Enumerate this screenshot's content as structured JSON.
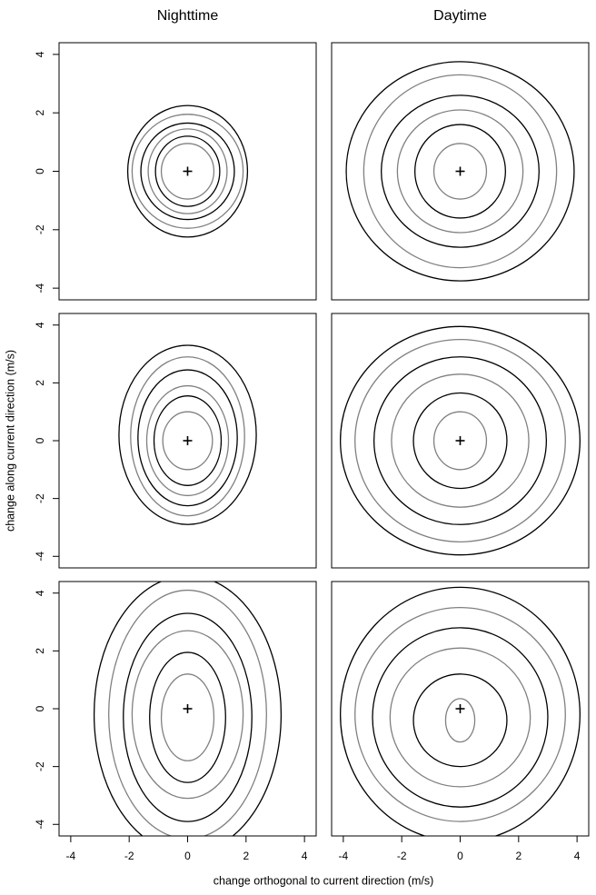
{
  "figure": {
    "xlabel": "change orthogonal to current direction (m/s)",
    "ylabel": "change along current direction (m/s)"
  },
  "chart_data": [
    {
      "type": "contour",
      "title": "Nighttime",
      "xlim": [
        -4.4,
        4.4
      ],
      "ylim": [
        -4.4,
        4.4
      ],
      "yticks": [
        -4,
        -2,
        0,
        2,
        4
      ],
      "center": {
        "x": 0,
        "y": 0
      },
      "contours": [
        {
          "color": "#808080",
          "cx": 0,
          "cy": 0,
          "rx": 0.9,
          "ry": 0.95
        },
        {
          "color": "#000000",
          "cx": 0,
          "cy": 0,
          "rx": 1.1,
          "ry": 1.2
        },
        {
          "color": "#808080",
          "cx": 0,
          "cy": 0,
          "rx": 1.35,
          "ry": 1.45
        },
        {
          "color": "#000000",
          "cx": 0,
          "cy": 0,
          "rx": 1.6,
          "ry": 1.65
        },
        {
          "color": "#808080",
          "cx": 0,
          "cy": 0,
          "rx": 1.9,
          "ry": 1.95
        },
        {
          "color": "#000000",
          "cx": 0,
          "cy": 0,
          "rx": 2.05,
          "ry": 2.25
        }
      ]
    },
    {
      "type": "contour",
      "title": "Daytime",
      "xlim": [
        -4.4,
        4.4
      ],
      "ylim": [
        -4.4,
        4.4
      ],
      "center": {
        "x": 0,
        "y": 0
      },
      "contours": [
        {
          "color": "#808080",
          "cx": 0,
          "cy": 0,
          "rx": 0.9,
          "ry": 0.95
        },
        {
          "color": "#000000",
          "cx": 0,
          "cy": 0,
          "rx": 1.55,
          "ry": 1.6
        },
        {
          "color": "#808080",
          "cx": 0,
          "cy": 0,
          "rx": 2.15,
          "ry": 2.1
        },
        {
          "color": "#000000",
          "cx": 0,
          "cy": 0,
          "rx": 2.7,
          "ry": 2.6
        },
        {
          "color": "#808080",
          "cx": 0,
          "cy": 0,
          "rx": 3.3,
          "ry": 3.3
        },
        {
          "color": "#000000",
          "cx": 0,
          "cy": 0,
          "rx": 3.9,
          "ry": 3.75
        }
      ]
    },
    {
      "type": "contour",
      "xlim": [
        -4.4,
        4.4
      ],
      "ylim": [
        -4.4,
        4.4
      ],
      "yticks": [
        -4,
        -2,
        0,
        2,
        4
      ],
      "center": {
        "x": 0,
        "y": 0
      },
      "contours": [
        {
          "color": "#808080",
          "cx": 0,
          "cy": 0,
          "rx": 0.85,
          "ry": 1.0
        },
        {
          "color": "#000000",
          "cx": 0,
          "cy": 0,
          "rx": 1.15,
          "ry": 1.55
        },
        {
          "color": "#808080",
          "cx": 0,
          "cy": 0,
          "rx": 1.4,
          "ry": 1.9
        },
        {
          "color": "#000000",
          "cx": 0,
          "cy": 0.1,
          "rx": 1.7,
          "ry": 2.35
        },
        {
          "color": "#808080",
          "cx": 0,
          "cy": 0.15,
          "rx": 1.95,
          "ry": 2.75
        },
        {
          "color": "#000000",
          "cx": 0,
          "cy": 0.2,
          "rx": 2.35,
          "ry": 3.1
        }
      ]
    },
    {
      "type": "contour",
      "xlim": [
        -4.4,
        4.4
      ],
      "ylim": [
        -4.4,
        4.4
      ],
      "center": {
        "x": 0,
        "y": 0
      },
      "contours": [
        {
          "color": "#808080",
          "cx": 0,
          "cy": 0,
          "rx": 0.9,
          "ry": 1.0
        },
        {
          "color": "#000000",
          "cx": 0,
          "cy": 0,
          "rx": 1.6,
          "ry": 1.65
        },
        {
          "color": "#808080",
          "cx": 0,
          "cy": 0,
          "rx": 2.35,
          "ry": 2.3
        },
        {
          "color": "#000000",
          "cx": 0,
          "cy": 0,
          "rx": 2.95,
          "ry": 2.9
        },
        {
          "color": "#808080",
          "cx": 0,
          "cy": 0,
          "rx": 3.6,
          "ry": 3.5
        },
        {
          "color": "#000000",
          "cx": 0,
          "cy": 0,
          "rx": 4.1,
          "ry": 3.95
        }
      ]
    },
    {
      "type": "contour",
      "xlim": [
        -4.4,
        4.4
      ],
      "ylim": [
        -4.4,
        4.4
      ],
      "xticks": [
        -4,
        -2,
        0,
        2,
        4
      ],
      "yticks": [
        -4,
        -2,
        0,
        2,
        4
      ],
      "center": {
        "x": 0,
        "y": 0
      },
      "contours": [
        {
          "color": "#808080",
          "cx": 0,
          "cy": -0.3,
          "rx": 0.9,
          "ry": 1.5
        },
        {
          "color": "#000000",
          "cx": 0,
          "cy": -0.3,
          "rx": 1.3,
          "ry": 2.25
        },
        {
          "color": "#808080",
          "cx": 0,
          "cy": -0.2,
          "rx": 1.9,
          "ry": 2.9
        },
        {
          "color": "#000000",
          "cx": 0,
          "cy": -0.3,
          "rx": 2.2,
          "ry": 3.6
        },
        {
          "color": "#808080",
          "cx": 0,
          "cy": -0.2,
          "rx": 2.7,
          "ry": 4.3
        },
        {
          "color": "#000000",
          "cx": 0,
          "cy": -0.2,
          "rx": 3.2,
          "ry": 4.8
        }
      ]
    },
    {
      "type": "contour",
      "xlim": [
        -4.4,
        4.4
      ],
      "ylim": [
        -4.4,
        4.4
      ],
      "xticks": [
        -4,
        -2,
        0,
        2,
        4
      ],
      "center": {
        "x": 0,
        "y": 0
      },
      "contours": [
        {
          "color": "#808080",
          "cx": 0,
          "cy": -0.4,
          "rx": 0.5,
          "ry": 0.75
        },
        {
          "color": "#000000",
          "cx": 0,
          "cy": -0.4,
          "rx": 1.6,
          "ry": 1.6
        },
        {
          "color": "#808080",
          "cx": 0,
          "cy": -0.3,
          "rx": 2.4,
          "ry": 2.4
        },
        {
          "color": "#000000",
          "cx": 0,
          "cy": -0.3,
          "rx": 3.0,
          "ry": 3.1
        },
        {
          "color": "#808080",
          "cx": 0,
          "cy": -0.2,
          "rx": 3.6,
          "ry": 3.7
        },
        {
          "color": "#000000",
          "cx": 0,
          "cy": -0.2,
          "rx": 4.1,
          "ry": 4.4
        }
      ]
    }
  ]
}
